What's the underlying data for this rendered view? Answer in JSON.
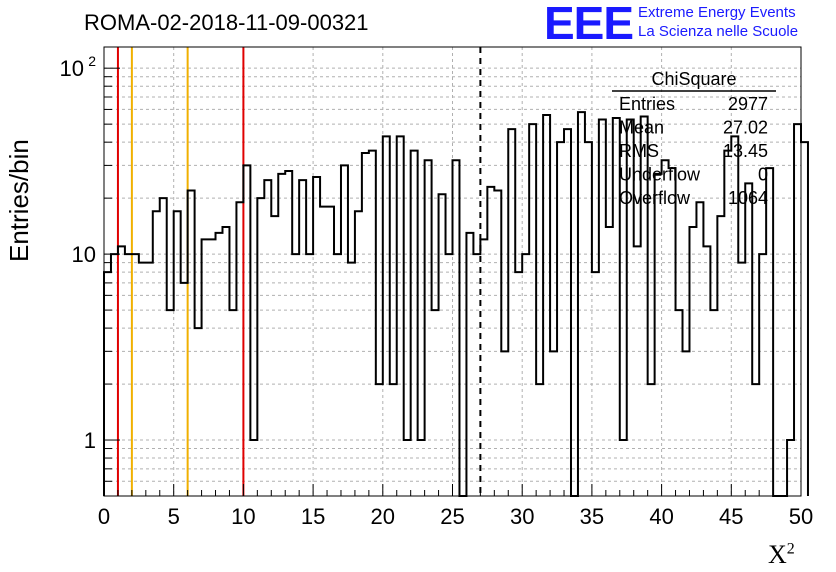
{
  "header": {
    "title": "ROMA-02-2018-11-09-00321",
    "logo": "EEE",
    "logo_line1": "Extreme Energy Events",
    "logo_line2": "La Scienza nelle Scuole"
  },
  "stats": {
    "name": "ChiSquare",
    "rows": [
      {
        "label": "Entries",
        "value": "2977"
      },
      {
        "label": "Mean",
        "value": "27.02"
      },
      {
        "label": "RMS",
        "value": "13.45"
      },
      {
        "label": "Underflow",
        "value": "0"
      },
      {
        "label": "Overflow",
        "value": "1064"
      }
    ]
  },
  "colors": {
    "red": "#e00000",
    "orange": "#f0b000",
    "line": "#000000",
    "grid": "#b0b0b0"
  },
  "chart_data": {
    "type": "histogram",
    "xlabel": "X",
    "xlabel_sup": "2",
    "ylabel": "Entries/bin",
    "xlim": [
      0,
      50
    ],
    "ylim": [
      0.5,
      130
    ],
    "yscale": "log",
    "grid": true,
    "xticks": [
      0,
      5,
      10,
      15,
      20,
      25,
      30,
      35,
      40,
      45,
      50
    ],
    "yticks": [
      {
        "value": 1,
        "label": "1"
      },
      {
        "value": 10,
        "label": "10"
      },
      {
        "value": 100,
        "label": "10",
        "sup": "2"
      }
    ],
    "bin_width": 0.5,
    "values": [
      8,
      10,
      11,
      10,
      10,
      9,
      9,
      17,
      20,
      5,
      17,
      7,
      22,
      4,
      12,
      12,
      13,
      14,
      5,
      19,
      30,
      1,
      20,
      25,
      16,
      27,
      28,
      10,
      25,
      10,
      26,
      18,
      18,
      10,
      30,
      9,
      17,
      35,
      36,
      2,
      43,
      2,
      43,
      1,
      36,
      1,
      32,
      5,
      21,
      10,
      32,
      0.4,
      13,
      10,
      12,
      23,
      22,
      3,
      47,
      8,
      10,
      50,
      2,
      56,
      3,
      40,
      47,
      0.4,
      58,
      40,
      8,
      53,
      14,
      54,
      1,
      53,
      11,
      55,
      2,
      27,
      32,
      29,
      5,
      3,
      14,
      19,
      11,
      5,
      16,
      36,
      43,
      9,
      24,
      2,
      10,
      29,
      0.4,
      0.4,
      1,
      50,
      40
    ],
    "vlines": [
      {
        "x": 1,
        "color": "red"
      },
      {
        "x": 2,
        "color": "orange"
      },
      {
        "x": 6,
        "color": "orange"
      },
      {
        "x": 10,
        "color": "red"
      },
      {
        "x": 27,
        "color": "black",
        "style": "dashed"
      }
    ]
  }
}
